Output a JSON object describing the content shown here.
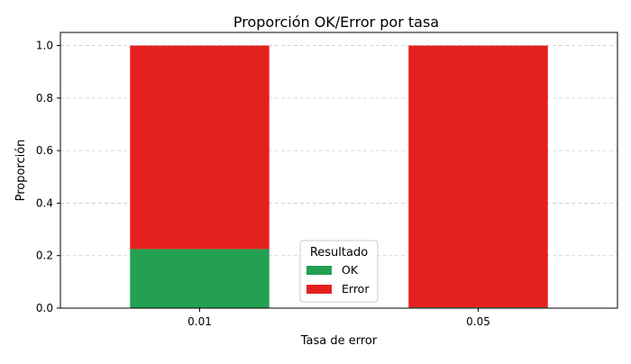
{
  "chart_data": {
    "type": "bar",
    "stacked": true,
    "title": "Proporción OK/Error por tasa",
    "xlabel": "Tasa de error",
    "ylabel": "Proporción",
    "categories": [
      "0.01",
      "0.05"
    ],
    "series": [
      {
        "name": "OK",
        "values": [
          0.225,
          0.003
        ],
        "color": "#23a052"
      },
      {
        "name": "Error",
        "values": [
          0.775,
          0.997
        ],
        "color": "#e5211f"
      }
    ],
    "ylim": [
      0,
      1.05
    ],
    "yticks": [
      "0.0",
      "0.2",
      "0.4",
      "0.6",
      "0.8",
      "1.0"
    ],
    "grid": {
      "y": true,
      "x": false,
      "style": "dashed"
    },
    "legend": {
      "title": "Resultado",
      "placement": "bottom-center"
    }
  }
}
